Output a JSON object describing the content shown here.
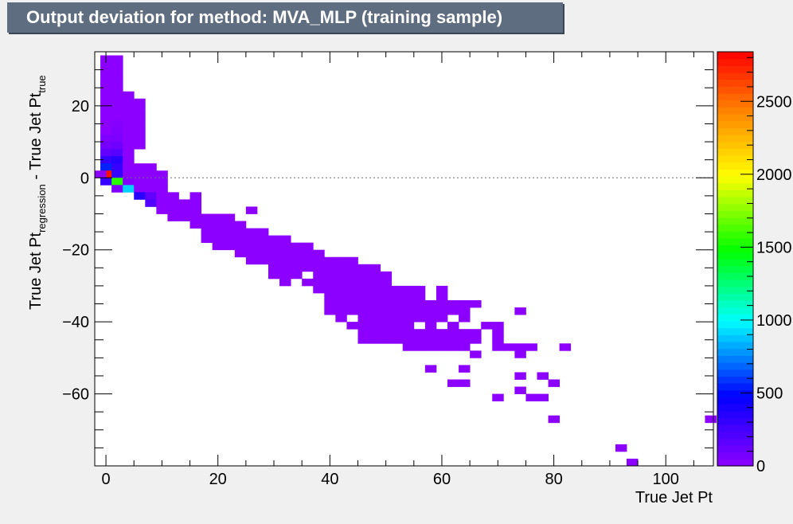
{
  "chart_data": {
    "type": "heatmap",
    "title": "Output deviation for method: MVA_MLP (training sample)",
    "xlabel": "True Jet Pt",
    "ylabel": {
      "main": "True Jet Pt",
      "sub1": "regression",
      "middle": " - True Jet Pt",
      "sub2": "true"
    },
    "xlim": [
      -2,
      108.5
    ],
    "ylim": [
      -80,
      35
    ],
    "x_ticks": [
      "0",
      "20",
      "40",
      "60",
      "80",
      "100"
    ],
    "x_tick_values": [
      0,
      20,
      40,
      60,
      80,
      100
    ],
    "y_ticks": [
      "20",
      "0",
      "−20",
      "−40",
      "−60"
    ],
    "y_tick_values": [
      20,
      0,
      -20,
      -40,
      -60
    ],
    "zlim": [
      0,
      2840
    ],
    "z_ticks": [
      "0",
      "500",
      "1000",
      "1500",
      "2000",
      "2500"
    ],
    "z_tick_values": [
      0,
      500,
      1000,
      1500,
      2000,
      2500
    ],
    "reference_line_y": 0,
    "grid": false,
    "colorbar": "right",
    "cells": [
      [
        0,
        33,
        1
      ],
      [
        0,
        31,
        1
      ],
      [
        0,
        29,
        1
      ],
      [
        0,
        27,
        1
      ],
      [
        0,
        25,
        1
      ],
      [
        0,
        23,
        1
      ],
      [
        0,
        21,
        1
      ],
      [
        0,
        19,
        1
      ],
      [
        0,
        17,
        1
      ],
      [
        0,
        15,
        1
      ],
      [
        0,
        13,
        1
      ],
      [
        0,
        11,
        40
      ],
      [
        0,
        9,
        80
      ],
      [
        0,
        7,
        150
      ],
      [
        0,
        5,
        300
      ],
      [
        0,
        3,
        550
      ],
      [
        0,
        1,
        2800
      ],
      [
        -1,
        1,
        1
      ],
      [
        0,
        -1,
        300
      ],
      [
        2,
        33,
        1
      ],
      [
        2,
        31,
        1
      ],
      [
        2,
        29,
        1
      ],
      [
        2,
        27,
        1
      ],
      [
        2,
        25,
        1
      ],
      [
        2,
        23,
        1
      ],
      [
        2,
        21,
        1
      ],
      [
        2,
        19,
        1
      ],
      [
        2,
        17,
        1
      ],
      [
        2,
        15,
        20
      ],
      [
        2,
        13,
        40
      ],
      [
        2,
        11,
        60
      ],
      [
        2,
        9,
        100
      ],
      [
        2,
        7,
        180
      ],
      [
        2,
        5,
        350
      ],
      [
        2,
        3,
        300
      ],
      [
        2,
        1,
        300
      ],
      [
        2,
        -1,
        1550
      ],
      [
        2,
        -3,
        40
      ],
      [
        4,
        23,
        1
      ],
      [
        4,
        21,
        1
      ],
      [
        4,
        19,
        1
      ],
      [
        4,
        17,
        1
      ],
      [
        4,
        15,
        1
      ],
      [
        4,
        13,
        1
      ],
      [
        4,
        11,
        1
      ],
      [
        4,
        9,
        1
      ],
      [
        4,
        7,
        1
      ],
      [
        4,
        5,
        1
      ],
      [
        4,
        3,
        1
      ],
      [
        4,
        1,
        1
      ],
      [
        4,
        -1,
        30
      ],
      [
        4,
        -3,
        900
      ],
      [
        6,
        21,
        1
      ],
      [
        6,
        19,
        1
      ],
      [
        6,
        17,
        1
      ],
      [
        6,
        15,
        1
      ],
      [
        6,
        13,
        1
      ],
      [
        6,
        11,
        1
      ],
      [
        6,
        9,
        1
      ],
      [
        6,
        3,
        1
      ],
      [
        6,
        1,
        1
      ],
      [
        6,
        -1,
        1
      ],
      [
        6,
        -3,
        1
      ],
      [
        6,
        -5,
        350
      ],
      [
        8,
        3,
        1
      ],
      [
        8,
        1,
        1
      ],
      [
        8,
        -1,
        1
      ],
      [
        8,
        -3,
        1
      ],
      [
        8,
        -5,
        150
      ],
      [
        8,
        -7,
        200
      ],
      [
        10,
        1,
        1
      ],
      [
        10,
        -1,
        1
      ],
      [
        10,
        -3,
        1
      ],
      [
        10,
        -5,
        1
      ],
      [
        10,
        -7,
        1
      ],
      [
        10,
        -9,
        1
      ],
      [
        12,
        -5,
        1
      ],
      [
        12,
        -7,
        1
      ],
      [
        12,
        -9,
        1
      ],
      [
        12,
        -11,
        1
      ],
      [
        14,
        -7,
        1
      ],
      [
        14,
        -9,
        1
      ],
      [
        14,
        -11,
        1
      ],
      [
        16,
        -5,
        1
      ],
      [
        16,
        -7,
        1
      ],
      [
        16,
        -9,
        1
      ],
      [
        16,
        -11,
        1
      ],
      [
        16,
        -13,
        1
      ],
      [
        18,
        -11,
        1
      ],
      [
        18,
        -13,
        1
      ],
      [
        18,
        -15,
        1
      ],
      [
        18,
        -17,
        1
      ],
      [
        20,
        -11,
        1
      ],
      [
        20,
        -13,
        1
      ],
      [
        20,
        -15,
        1
      ],
      [
        20,
        -17,
        1
      ],
      [
        20,
        -19,
        1
      ],
      [
        22,
        -11,
        1
      ],
      [
        22,
        -13,
        1
      ],
      [
        22,
        -15,
        1
      ],
      [
        22,
        -17,
        1
      ],
      [
        22,
        -19,
        1
      ],
      [
        24,
        -13,
        1
      ],
      [
        24,
        -15,
        1
      ],
      [
        24,
        -17,
        1
      ],
      [
        24,
        -19,
        1
      ],
      [
        24,
        -21,
        1
      ],
      [
        26,
        -9,
        1
      ],
      [
        26,
        -15,
        1
      ],
      [
        26,
        -17,
        1
      ],
      [
        26,
        -19,
        1
      ],
      [
        26,
        -21,
        1
      ],
      [
        26,
        -23,
        1
      ],
      [
        28,
        -15,
        1
      ],
      [
        28,
        -17,
        1
      ],
      [
        28,
        -19,
        1
      ],
      [
        28,
        -21,
        1
      ],
      [
        28,
        -23,
        1
      ],
      [
        30,
        -17,
        1
      ],
      [
        30,
        -19,
        1
      ],
      [
        30,
        -21,
        1
      ],
      [
        30,
        -23,
        1
      ],
      [
        30,
        -25,
        1
      ],
      [
        30,
        -27,
        1
      ],
      [
        32,
        -17,
        1
      ],
      [
        32,
        -19,
        1
      ],
      [
        32,
        -21,
        1
      ],
      [
        32,
        -23,
        1
      ],
      [
        32,
        -25,
        1
      ],
      [
        32,
        -27,
        1
      ],
      [
        32,
        -29,
        1
      ],
      [
        34,
        -19,
        1
      ],
      [
        34,
        -21,
        1
      ],
      [
        34,
        -23,
        1
      ],
      [
        34,
        -25,
        1
      ],
      [
        34,
        -27,
        1
      ],
      [
        36,
        -19,
        1
      ],
      [
        36,
        -21,
        1
      ],
      [
        36,
        -23,
        1
      ],
      [
        36,
        -25,
        1
      ],
      [
        36,
        -29,
        1
      ],
      [
        38,
        -21,
        1
      ],
      [
        38,
        -23,
        1
      ],
      [
        38,
        -25,
        1
      ],
      [
        38,
        -27,
        1
      ],
      [
        38,
        -29,
        1
      ],
      [
        38,
        -31,
        1
      ],
      [
        40,
        -23,
        1
      ],
      [
        40,
        -25,
        1
      ],
      [
        40,
        -27,
        1
      ],
      [
        40,
        -29,
        1
      ],
      [
        40,
        -31,
        1
      ],
      [
        40,
        -33,
        1
      ],
      [
        40,
        -35,
        1
      ],
      [
        40,
        -37,
        1
      ],
      [
        42,
        -23,
        1
      ],
      [
        42,
        -25,
        1
      ],
      [
        42,
        -27,
        1
      ],
      [
        42,
        -29,
        1
      ],
      [
        42,
        -31,
        1
      ],
      [
        42,
        -33,
        1
      ],
      [
        42,
        -35,
        1
      ],
      [
        42,
        -37,
        1
      ],
      [
        42,
        -39,
        1
      ],
      [
        44,
        -23,
        1
      ],
      [
        44,
        -25,
        1
      ],
      [
        44,
        -27,
        1
      ],
      [
        44,
        -29,
        1
      ],
      [
        44,
        -31,
        1
      ],
      [
        44,
        -33,
        1
      ],
      [
        44,
        -35,
        1
      ],
      [
        44,
        -37,
        1
      ],
      [
        44,
        -41,
        1
      ],
      [
        46,
        -25,
        1
      ],
      [
        46,
        -27,
        1
      ],
      [
        46,
        -29,
        1
      ],
      [
        46,
        -31,
        1
      ],
      [
        46,
        -33,
        1
      ],
      [
        46,
        -35,
        1
      ],
      [
        46,
        -37,
        1
      ],
      [
        46,
        -39,
        1
      ],
      [
        46,
        -41,
        1
      ],
      [
        46,
        -43,
        1
      ],
      [
        46,
        -45,
        1
      ],
      [
        48,
        -25,
        1
      ],
      [
        48,
        -27,
        1
      ],
      [
        48,
        -29,
        1
      ],
      [
        48,
        -31,
        1
      ],
      [
        48,
        -33,
        1
      ],
      [
        48,
        -35,
        1
      ],
      [
        48,
        -37,
        1
      ],
      [
        48,
        -39,
        1
      ],
      [
        48,
        -41,
        1
      ],
      [
        48,
        -43,
        1
      ],
      [
        48,
        -45,
        1
      ],
      [
        50,
        -27,
        1
      ],
      [
        50,
        -29,
        1
      ],
      [
        50,
        -31,
        1
      ],
      [
        50,
        -33,
        1
      ],
      [
        50,
        -35,
        1
      ],
      [
        50,
        -37,
        1
      ],
      [
        50,
        -39,
        1
      ],
      [
        50,
        -41,
        1
      ],
      [
        50,
        -43,
        1
      ],
      [
        50,
        -45,
        1
      ],
      [
        52,
        -31,
        1
      ],
      [
        52,
        -33,
        1
      ],
      [
        52,
        -35,
        1
      ],
      [
        52,
        -37,
        1
      ],
      [
        52,
        -39,
        1
      ],
      [
        52,
        -41,
        1
      ],
      [
        52,
        -43,
        1
      ],
      [
        52,
        -45,
        1
      ],
      [
        54,
        -31,
        1
      ],
      [
        54,
        -33,
        1
      ],
      [
        54,
        -35,
        1
      ],
      [
        54,
        -37,
        1
      ],
      [
        54,
        -39,
        1
      ],
      [
        54,
        -41,
        1
      ],
      [
        54,
        -43,
        1
      ],
      [
        54,
        -45,
        1
      ],
      [
        54,
        -47,
        1
      ],
      [
        56,
        -31,
        1
      ],
      [
        56,
        -33,
        1
      ],
      [
        56,
        -35,
        1
      ],
      [
        56,
        -37,
        1
      ],
      [
        56,
        -39,
        1
      ],
      [
        56,
        -43,
        1
      ],
      [
        56,
        -45,
        1
      ],
      [
        56,
        -47,
        1
      ],
      [
        58,
        -35,
        1
      ],
      [
        58,
        -37,
        1
      ],
      [
        58,
        -39,
        1
      ],
      [
        58,
        -41,
        1
      ],
      [
        58,
        -43,
        1
      ],
      [
        58,
        -45,
        1
      ],
      [
        58,
        -47,
        1
      ],
      [
        58,
        -53,
        1
      ],
      [
        60,
        -31,
        1
      ],
      [
        60,
        -33,
        1
      ],
      [
        60,
        -35,
        1
      ],
      [
        60,
        -37,
        1
      ],
      [
        60,
        -39,
        1
      ],
      [
        60,
        -43,
        1
      ],
      [
        60,
        -45,
        1
      ],
      [
        60,
        -47,
        1
      ],
      [
        62,
        -35,
        1
      ],
      [
        62,
        -37,
        1
      ],
      [
        62,
        -41,
        1
      ],
      [
        62,
        -43,
        1
      ],
      [
        62,
        -45,
        1
      ],
      [
        62,
        -47,
        1
      ],
      [
        62,
        -57,
        1
      ],
      [
        64,
        -35,
        1
      ],
      [
        64,
        -37,
        1
      ],
      [
        64,
        -39,
        1
      ],
      [
        64,
        -43,
        1
      ],
      [
        64,
        -45,
        1
      ],
      [
        64,
        -47,
        1
      ],
      [
        64,
        -53,
        1
      ],
      [
        64,
        -57,
        1
      ],
      [
        66,
        -35,
        1
      ],
      [
        66,
        -43,
        1
      ],
      [
        66,
        -45,
        1
      ],
      [
        66,
        -49,
        1
      ],
      [
        68,
        -41,
        1
      ],
      [
        70,
        -41,
        1
      ],
      [
        70,
        -43,
        1
      ],
      [
        70,
        -45,
        1
      ],
      [
        70,
        -47,
        1
      ],
      [
        70,
        -61,
        1
      ],
      [
        72,
        -47,
        1
      ],
      [
        74,
        -37,
        1
      ],
      [
        74,
        -47,
        1
      ],
      [
        74,
        -49,
        1
      ],
      [
        74,
        -55,
        1
      ],
      [
        74,
        -59,
        1
      ],
      [
        76,
        -47,
        1
      ],
      [
        76,
        -61,
        1
      ],
      [
        78,
        -55,
        1
      ],
      [
        78,
        -61,
        1
      ],
      [
        80,
        -57,
        1
      ],
      [
        80,
        -67,
        1
      ],
      [
        82,
        -47,
        1
      ],
      [
        92,
        -75,
        1
      ],
      [
        94,
        -79,
        1
      ],
      [
        108,
        -67,
        1
      ]
    ]
  }
}
